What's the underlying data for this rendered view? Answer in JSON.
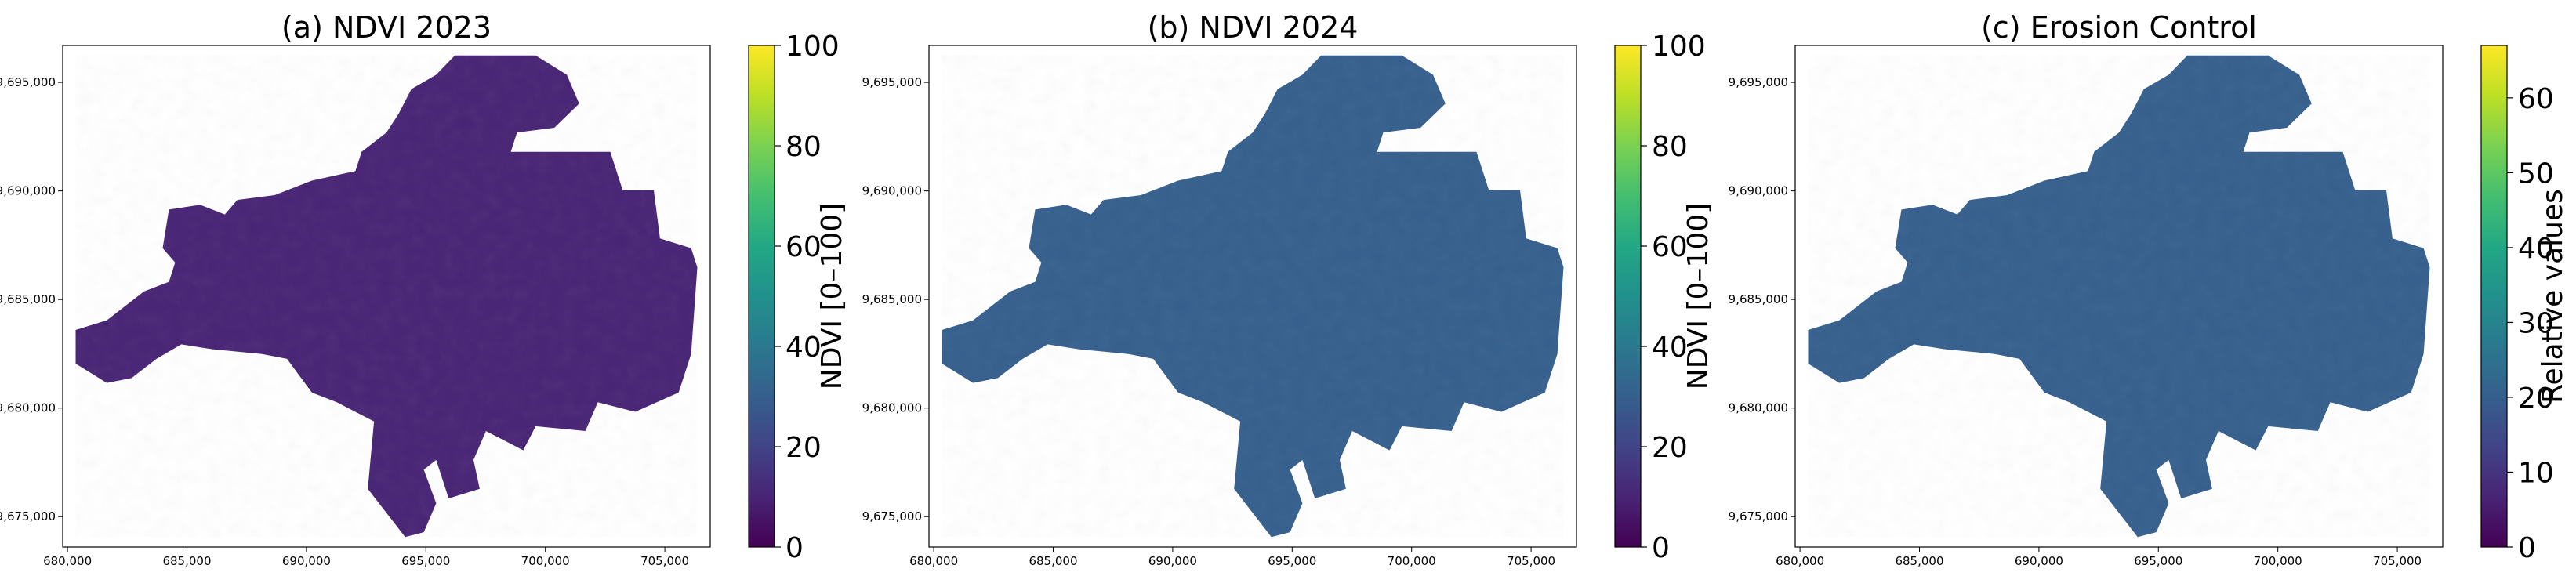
{
  "chart_data": [
    {
      "type": "heatmap",
      "title": "(a) NDVI 2023",
      "x_ticks": [
        "680,000",
        "685,000",
        "690,000",
        "695,000",
        "700,000",
        "705,000"
      ],
      "y_ticks": [
        "9,695,000",
        "9,690,000",
        "9,685,000",
        "9,680,000",
        "9,675,000"
      ],
      "xlim": [
        679800,
        706900
      ],
      "ylim": [
        9673600,
        9696700
      ],
      "colorbar": {
        "label": "NDVI [0–100]",
        "ticks": [
          "0",
          "20",
          "40",
          "60",
          "80",
          "100"
        ],
        "range": [
          0,
          100
        ]
      },
      "dominant_value": 10,
      "palette": "viridis"
    },
    {
      "type": "heatmap",
      "title": "(b) NDVI 2024",
      "x_ticks": [
        "680,000",
        "685,000",
        "690,000",
        "695,000",
        "700,000",
        "705,000"
      ],
      "y_ticks": [
        "9,695,000",
        "9,690,000",
        "9,685,000",
        "9,680,000",
        "9,675,000"
      ],
      "xlim": [
        679800,
        706900
      ],
      "ylim": [
        9673600,
        9696700
      ],
      "colorbar": {
        "label": "NDVI [0–100]",
        "ticks": [
          "0",
          "20",
          "40",
          "60",
          "80",
          "100"
        ],
        "range": [
          0,
          100
        ]
      },
      "dominant_value": 25,
      "palette": "viridis"
    },
    {
      "type": "heatmap",
      "title": "(c) Erosion Control",
      "x_ticks": [
        "680,000",
        "685,000",
        "690,000",
        "695,000",
        "700,000",
        "705,000"
      ],
      "y_ticks": [
        "9,695,000",
        "9,690,000",
        "9,685,000",
        "9,680,000",
        "9,675,000"
      ],
      "xlim": [
        679800,
        706900
      ],
      "ylim": [
        9673600,
        9696700
      ],
      "colorbar": {
        "label": "Relative values",
        "ticks": [
          "0",
          "10",
          "20",
          "30",
          "40",
          "50",
          "60"
        ],
        "range": [
          0,
          67
        ]
      },
      "dominant_value": 17,
      "palette": "viridis"
    }
  ]
}
